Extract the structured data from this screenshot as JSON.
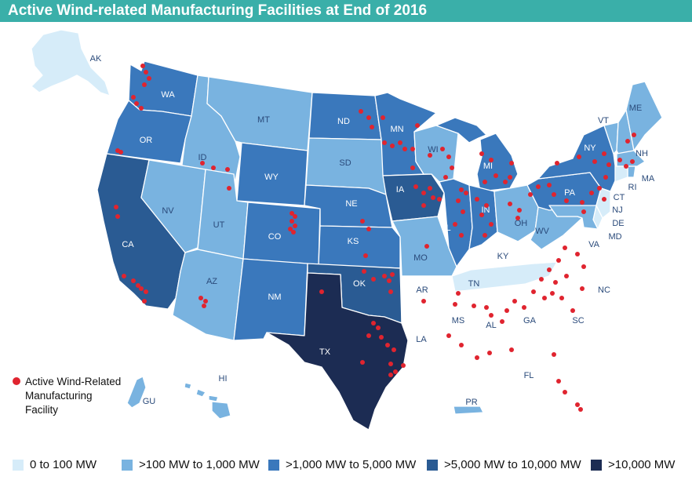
{
  "title": "Active Wind-related Manufacturing Facilities at End of 2016",
  "colors": {
    "tier0": "#d6ecf9",
    "tier1": "#79b3e0",
    "tier2": "#3a78bc",
    "tier3": "#2a5b93",
    "tier4": "#1c2c53",
    "none": "#ffffff",
    "facility": "#e0242f",
    "title_bg": "#3aafa9"
  },
  "legend": {
    "tier0": "0 to 100 MW",
    "tier1": ">100 MW to 1,000 MW",
    "tier2": ">1,000 MW to 5,000 MW",
    "tier3": ">5,000 MW to 10,000 MW",
    "tier4": ">10,000 MW"
  },
  "facility_legend": "Active Wind-Related Manufacturing Facility",
  "states": {
    "AK": "AK",
    "WA": "WA",
    "OR": "OR",
    "CA": "CA",
    "ID": "ID",
    "NV": "NV",
    "MT": "MT",
    "WY": "WY",
    "UT": "UT",
    "AZ": "AZ",
    "CO": "CO",
    "NM": "NM",
    "ND": "ND",
    "SD": "SD",
    "NE": "NE",
    "KS": "KS",
    "OK": "OK",
    "TX": "TX",
    "MN": "MN",
    "IA": "IA",
    "MO": "MO",
    "AR": "AR",
    "LA": "LA",
    "WI": "WI",
    "IL": "IL",
    "MI": "MI",
    "IN": "IN",
    "OH": "OH",
    "KY": "KY",
    "TN": "TN",
    "MS": "MS",
    "AL": "AL",
    "GA": "GA",
    "FL": "FL",
    "SC": "SC",
    "NC": "NC",
    "VA": "VA",
    "WV": "WV",
    "PA": "PA",
    "NY": "NY",
    "VT": "VT",
    "NH": "NH",
    "ME": "ME",
    "MA": "MA",
    "RI": "RI",
    "CT": "CT",
    "NJ": "NJ",
    "DE": "DE",
    "MD": "MD",
    "HI": "HI",
    "GU": "GU",
    "PR": "PR"
  },
  "state_tiers": {
    "AK": "tier0",
    "WA": "tier2",
    "OR": "tier2",
    "CA": "tier3",
    "ID": "tier1",
    "NV": "tier1",
    "MT": "tier1",
    "WY": "tier2",
    "UT": "tier1",
    "AZ": "tier1",
    "CO": "tier2",
    "NM": "tier2",
    "ND": "tier2",
    "SD": "tier1",
    "NE": "tier2",
    "KS": "tier2",
    "OK": "tier3",
    "TX": "tier4",
    "MN": "tier2",
    "IA": "tier3",
    "MO": "tier1",
    "AR": "none",
    "LA": "none",
    "WI": "tier1",
    "IL": "tier2",
    "MI": "tier2",
    "IN": "tier2",
    "OH": "tier1",
    "KY": "none",
    "TN": "tier0",
    "MS": "none",
    "AL": "none",
    "GA": "none",
    "FL": "none",
    "SC": "none",
    "NC": "none",
    "VA": "none",
    "WV": "tier1",
    "PA": "tier2",
    "NY": "tier2",
    "VT": "tier1",
    "NH": "tier1",
    "ME": "tier1",
    "MA": "tier1",
    "RI": "tier1",
    "CT": "tier0",
    "NJ": "tier0",
    "DE": "tier0",
    "MD": "tier1",
    "HI": "tier1",
    "GU": "tier1",
    "PR": "tier1"
  }
}
